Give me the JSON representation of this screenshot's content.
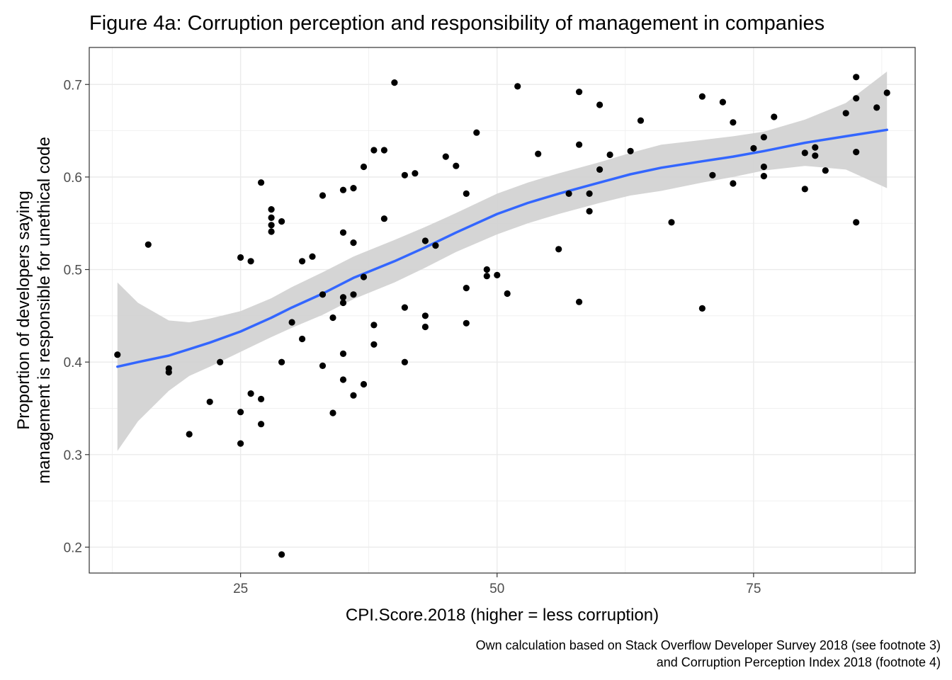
{
  "chart_data": {
    "type": "scatter",
    "title": "Figure 4a: Corruption perception and responsibility of management in companies",
    "xlabel": "CPI.Score.2018 (higher = less corruption)",
    "ylabel_lines": [
      "Proportion of developers saying",
      "management is responsible for unethical code"
    ],
    "caption_lines": [
      "Own calculation based on Stack Overflow Developer Survey 2018 (see footnote 3)",
      "and Corruption Perception Index 2018 (footnote 4)"
    ],
    "xlim": [
      10.25,
      90.75
    ],
    "ylim": [
      0.172,
      0.74
    ],
    "x_ticks": [
      25,
      50,
      75
    ],
    "x_tick_labels": [
      "25",
      "50",
      "75"
    ],
    "y_ticks": [
      0.2,
      0.3,
      0.4,
      0.5,
      0.6,
      0.7
    ],
    "y_tick_labels": [
      "0.2",
      "0.3",
      "0.4",
      "0.5",
      "0.6",
      "0.7"
    ],
    "grid": true,
    "colors": {
      "points": "#000000",
      "smooth_line": "#3366FF",
      "ribbon": "#d3d3d3",
      "grid": "#ebebeb",
      "panel_border": "#333333"
    },
    "points": [
      {
        "x": 13,
        "y": 0.408
      },
      {
        "x": 16,
        "y": 0.527
      },
      {
        "x": 18,
        "y": 0.393
      },
      {
        "x": 18,
        "y": 0.389
      },
      {
        "x": 20,
        "y": 0.322
      },
      {
        "x": 22,
        "y": 0.357
      },
      {
        "x": 23,
        "y": 0.4
      },
      {
        "x": 25,
        "y": 0.513
      },
      {
        "x": 25,
        "y": 0.346
      },
      {
        "x": 25,
        "y": 0.312
      },
      {
        "x": 26,
        "y": 0.509
      },
      {
        "x": 26,
        "y": 0.366
      },
      {
        "x": 27,
        "y": 0.594
      },
      {
        "x": 27,
        "y": 0.36
      },
      {
        "x": 27,
        "y": 0.333
      },
      {
        "x": 28,
        "y": 0.565
      },
      {
        "x": 28,
        "y": 0.556
      },
      {
        "x": 28,
        "y": 0.548
      },
      {
        "x": 28,
        "y": 0.541
      },
      {
        "x": 29,
        "y": 0.552
      },
      {
        "x": 29,
        "y": 0.4
      },
      {
        "x": 29,
        "y": 0.192
      },
      {
        "x": 30,
        "y": 0.443
      },
      {
        "x": 31,
        "y": 0.509
      },
      {
        "x": 31,
        "y": 0.425
      },
      {
        "x": 32,
        "y": 0.514
      },
      {
        "x": 33,
        "y": 0.58
      },
      {
        "x": 33,
        "y": 0.473
      },
      {
        "x": 33,
        "y": 0.396
      },
      {
        "x": 34,
        "y": 0.448
      },
      {
        "x": 34,
        "y": 0.345
      },
      {
        "x": 35,
        "y": 0.586
      },
      {
        "x": 35,
        "y": 0.54
      },
      {
        "x": 35,
        "y": 0.47
      },
      {
        "x": 35,
        "y": 0.464
      },
      {
        "x": 35,
        "y": 0.409
      },
      {
        "x": 35,
        "y": 0.381
      },
      {
        "x": 36,
        "y": 0.588
      },
      {
        "x": 36,
        "y": 0.529
      },
      {
        "x": 36,
        "y": 0.473
      },
      {
        "x": 36,
        "y": 0.364
      },
      {
        "x": 37,
        "y": 0.611
      },
      {
        "x": 37,
        "y": 0.492
      },
      {
        "x": 37,
        "y": 0.376
      },
      {
        "x": 38,
        "y": 0.629
      },
      {
        "x": 38,
        "y": 0.44
      },
      {
        "x": 38,
        "y": 0.419
      },
      {
        "x": 39,
        "y": 0.629
      },
      {
        "x": 39,
        "y": 0.555
      },
      {
        "x": 40,
        "y": 0.702
      },
      {
        "x": 41,
        "y": 0.602
      },
      {
        "x": 41,
        "y": 0.459
      },
      {
        "x": 41,
        "y": 0.4
      },
      {
        "x": 42,
        "y": 0.604
      },
      {
        "x": 43,
        "y": 0.531
      },
      {
        "x": 43,
        "y": 0.45
      },
      {
        "x": 43,
        "y": 0.438
      },
      {
        "x": 44,
        "y": 0.526
      },
      {
        "x": 45,
        "y": 0.622
      },
      {
        "x": 46,
        "y": 0.612
      },
      {
        "x": 47,
        "y": 0.582
      },
      {
        "x": 47,
        "y": 0.48
      },
      {
        "x": 47,
        "y": 0.442
      },
      {
        "x": 48,
        "y": 0.648
      },
      {
        "x": 49,
        "y": 0.5
      },
      {
        "x": 49,
        "y": 0.493
      },
      {
        "x": 50,
        "y": 0.494
      },
      {
        "x": 51,
        "y": 0.474
      },
      {
        "x": 52,
        "y": 0.698
      },
      {
        "x": 54,
        "y": 0.625
      },
      {
        "x": 56,
        "y": 0.522
      },
      {
        "x": 57,
        "y": 0.582
      },
      {
        "x": 58,
        "y": 0.692
      },
      {
        "x": 58,
        "y": 0.635
      },
      {
        "x": 58,
        "y": 0.465
      },
      {
        "x": 59,
        "y": 0.582
      },
      {
        "x": 59,
        "y": 0.563
      },
      {
        "x": 60,
        "y": 0.678
      },
      {
        "x": 60,
        "y": 0.608
      },
      {
        "x": 61,
        "y": 0.624
      },
      {
        "x": 63,
        "y": 0.628
      },
      {
        "x": 64,
        "y": 0.661
      },
      {
        "x": 67,
        "y": 0.551
      },
      {
        "x": 70,
        "y": 0.687
      },
      {
        "x": 70,
        "y": 0.458
      },
      {
        "x": 71,
        "y": 0.602
      },
      {
        "x": 72,
        "y": 0.681
      },
      {
        "x": 73,
        "y": 0.659
      },
      {
        "x": 73,
        "y": 0.593
      },
      {
        "x": 75,
        "y": 0.631
      },
      {
        "x": 76,
        "y": 0.643
      },
      {
        "x": 76,
        "y": 0.611
      },
      {
        "x": 76,
        "y": 0.601
      },
      {
        "x": 77,
        "y": 0.665
      },
      {
        "x": 80,
        "y": 0.626
      },
      {
        "x": 80,
        "y": 0.587
      },
      {
        "x": 81,
        "y": 0.632
      },
      {
        "x": 81,
        "y": 0.623
      },
      {
        "x": 82,
        "y": 0.607
      },
      {
        "x": 84,
        "y": 0.669
      },
      {
        "x": 85,
        "y": 0.708
      },
      {
        "x": 85,
        "y": 0.685
      },
      {
        "x": 85,
        "y": 0.627
      },
      {
        "x": 85,
        "y": 0.551
      },
      {
        "x": 87,
        "y": 0.675
      },
      {
        "x": 88,
        "y": 0.691
      }
    ],
    "smooth": {
      "x": [
        13,
        15,
        18,
        20,
        22,
        25,
        28,
        30,
        33,
        36,
        40,
        43,
        46,
        50,
        53,
        56,
        60,
        63,
        66,
        70,
        73,
        76,
        80,
        84,
        88
      ],
      "y": [
        0.395,
        0.4,
        0.407,
        0.414,
        0.421,
        0.433,
        0.448,
        0.459,
        0.474,
        0.491,
        0.509,
        0.524,
        0.54,
        0.56,
        0.572,
        0.582,
        0.594,
        0.603,
        0.61,
        0.617,
        0.622,
        0.628,
        0.637,
        0.644,
        0.651
      ],
      "upper": [
        0.486,
        0.464,
        0.445,
        0.443,
        0.447,
        0.455,
        0.469,
        0.481,
        0.497,
        0.514,
        0.532,
        0.546,
        0.561,
        0.582,
        0.594,
        0.604,
        0.616,
        0.626,
        0.635,
        0.64,
        0.644,
        0.649,
        0.662,
        0.68,
        0.714
      ],
      "lower": [
        0.304,
        0.336,
        0.369,
        0.385,
        0.395,
        0.411,
        0.427,
        0.437,
        0.451,
        0.468,
        0.486,
        0.502,
        0.519,
        0.538,
        0.55,
        0.56,
        0.572,
        0.58,
        0.585,
        0.594,
        0.6,
        0.607,
        0.612,
        0.608,
        0.588
      ]
    }
  }
}
